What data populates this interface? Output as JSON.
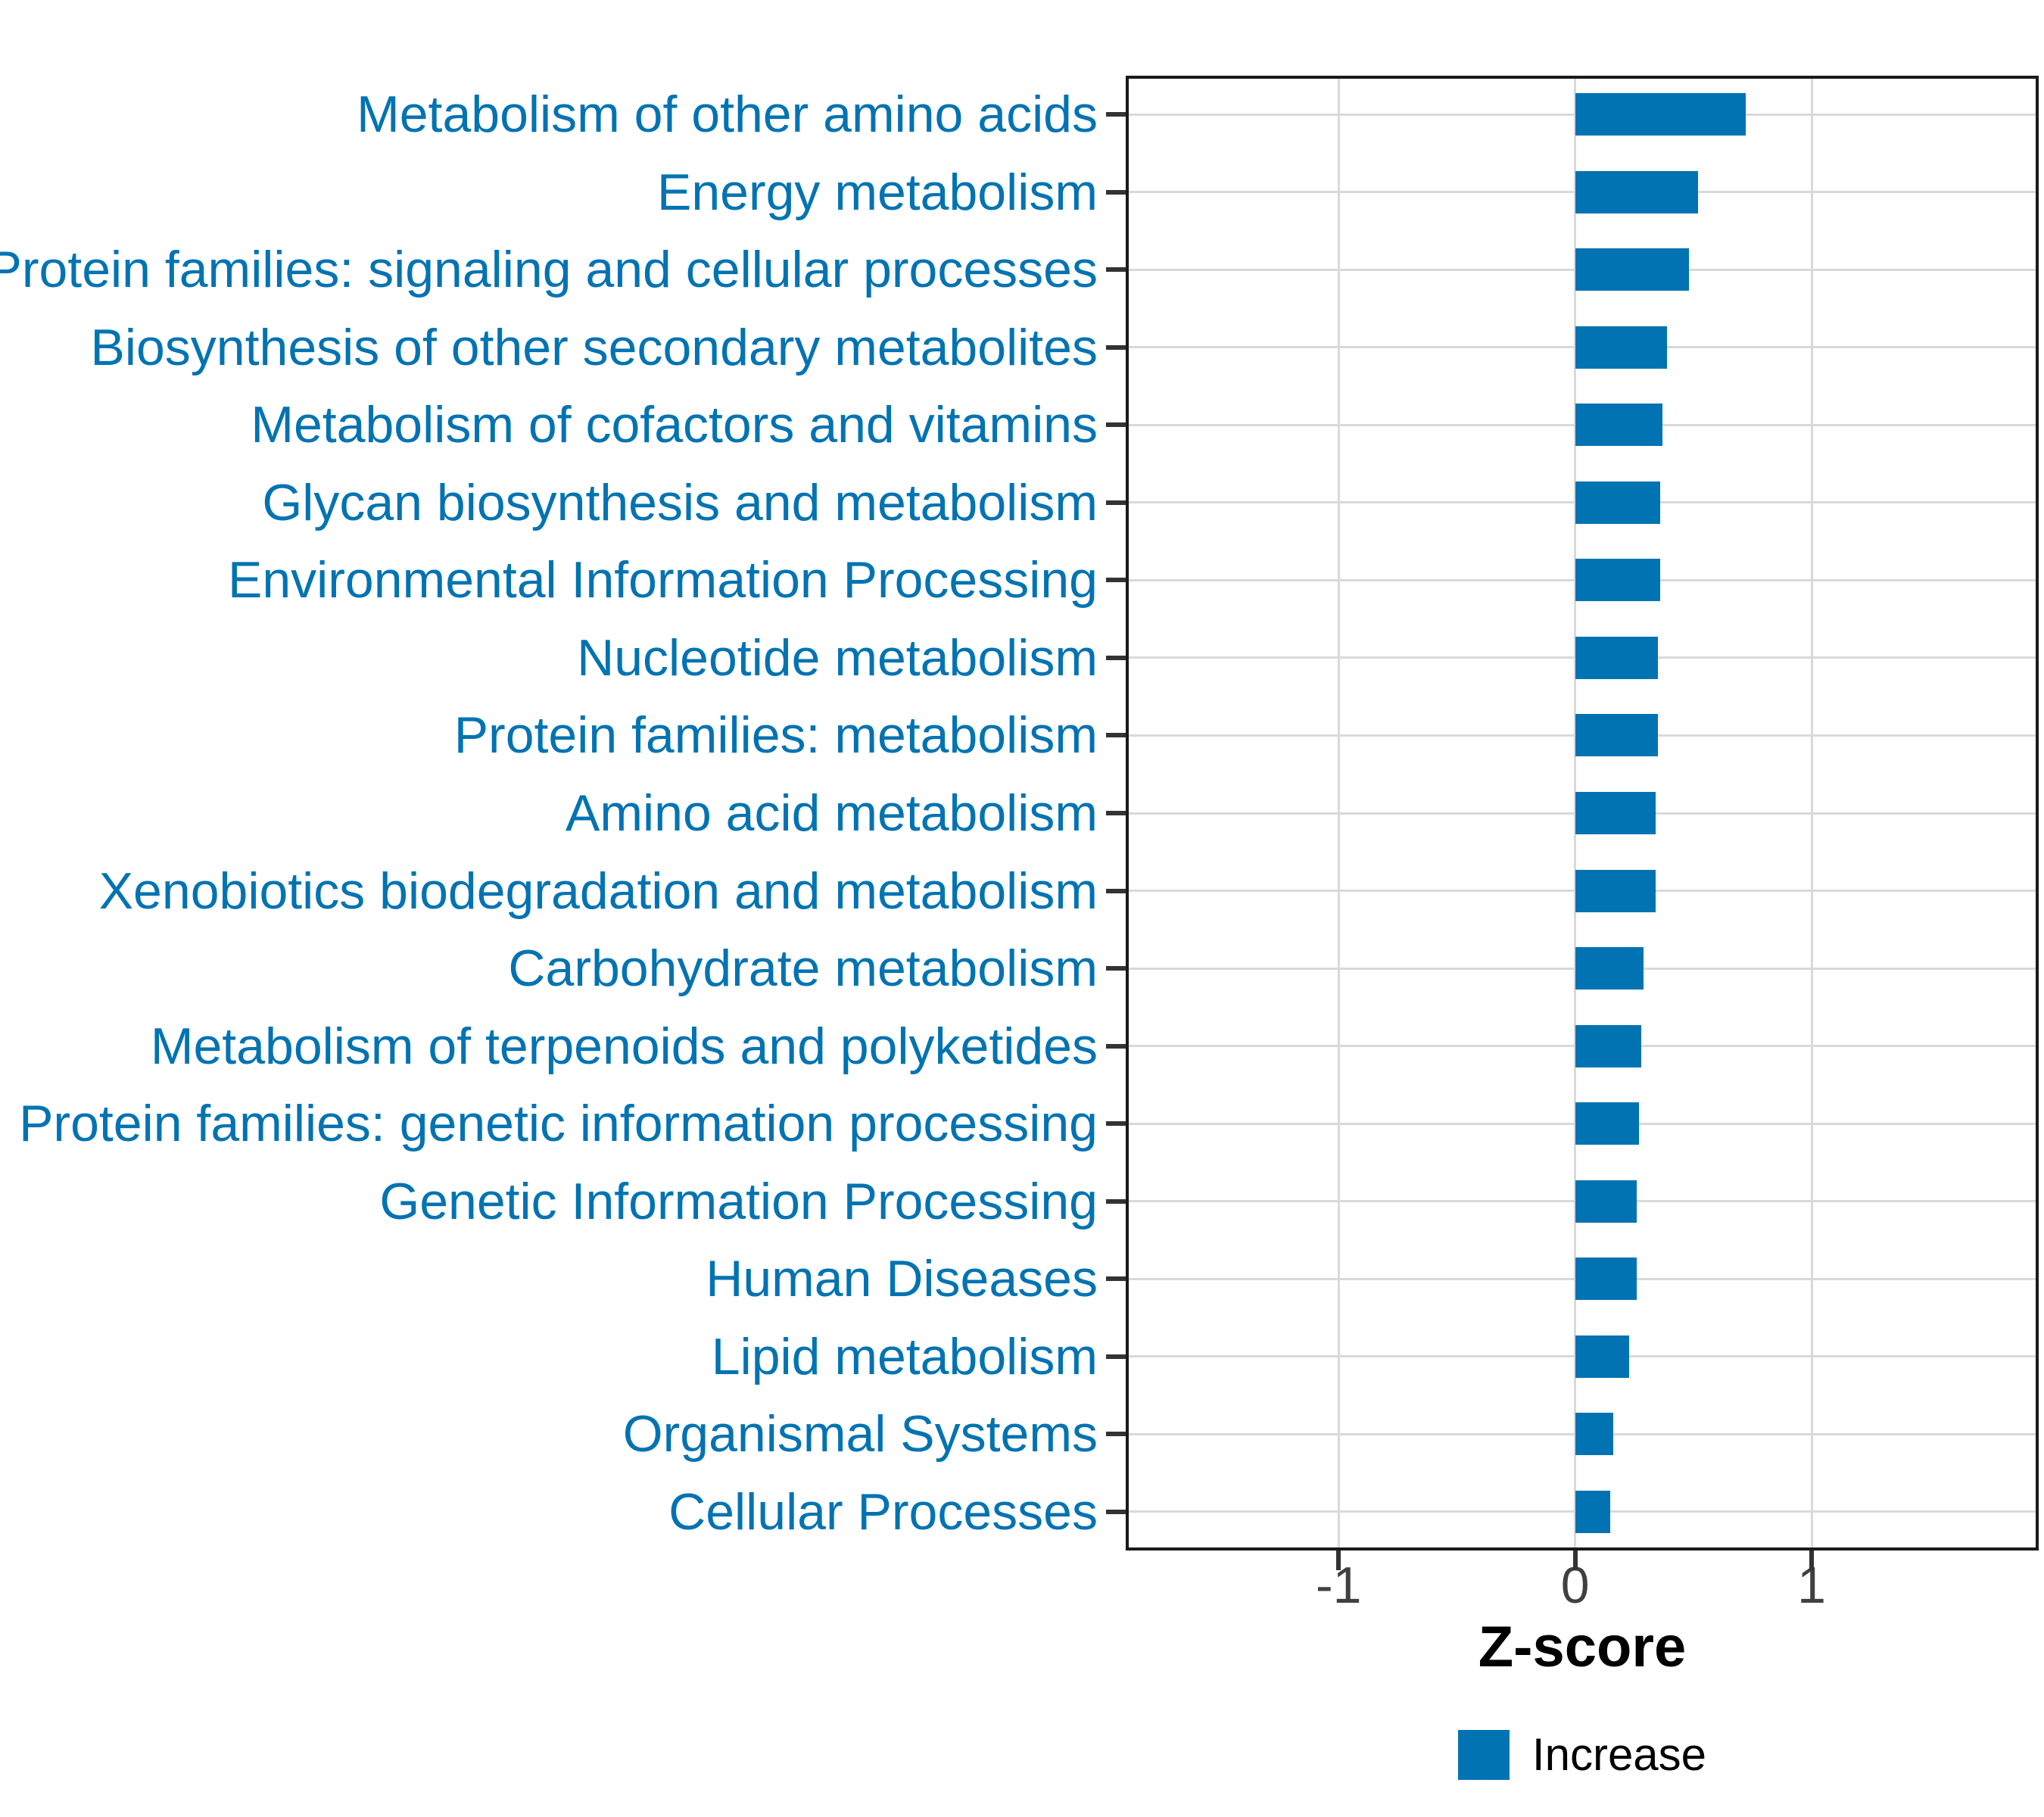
{
  "chart_data": {
    "type": "bar",
    "orientation": "horizontal",
    "title": "",
    "xlabel": "Z-score",
    "ylabel": "",
    "categories": [
      "Metabolism of other amino acids",
      "Energy metabolism",
      "Protein families: signaling and cellular processes",
      "Biosynthesis of other secondary metabolites",
      "Metabolism of cofactors and vitamins",
      "Glycan biosynthesis and metabolism",
      "Environmental Information Processing",
      "Nucleotide metabolism",
      "Protein families: metabolism",
      "Amino acid metabolism",
      "Xenobiotics biodegradation and metabolism",
      "Carbohydrate metabolism",
      "Metabolism of terpenoids and polyketides",
      "Protein families: genetic information processing",
      "Genetic Information Processing",
      "Human Diseases",
      "Lipid metabolism",
      "Organismal Systems",
      "Cellular Processes"
    ],
    "values": [
      0.72,
      0.52,
      0.48,
      0.39,
      0.37,
      0.36,
      0.36,
      0.35,
      0.35,
      0.34,
      0.34,
      0.29,
      0.28,
      0.27,
      0.26,
      0.26,
      0.23,
      0.16,
      0.15
    ],
    "xlim": [
      -1.9,
      1.96
    ],
    "xticks": [
      -1,
      0,
      1
    ],
    "grid": "major x and y, light gray",
    "legend": {
      "position": "bottom-center",
      "items": [
        {
          "label": "Increase",
          "color": "#0173b2"
        }
      ]
    },
    "colors": {
      "bar": "#0173b2",
      "category_label": "#0173b2",
      "axis_tick_text": "#404040",
      "axis_title": "#000000",
      "gridline": "#d9d9d9",
      "panel_border": "#1a1a1a",
      "background": "#ffffff"
    }
  }
}
